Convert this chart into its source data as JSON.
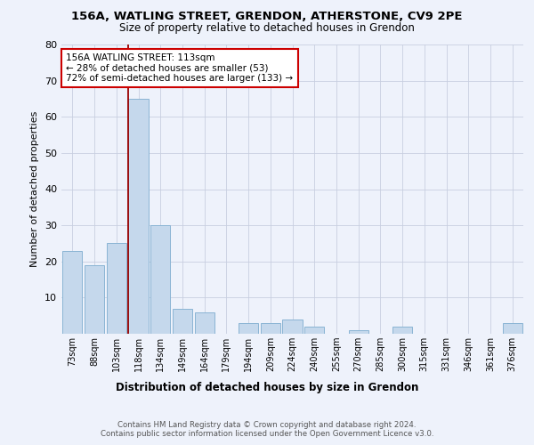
{
  "title1": "156A, WATLING STREET, GRENDON, ATHERSTONE, CV9 2PE",
  "title2": "Size of property relative to detached houses in Grendon",
  "xlabel": "Distribution of detached houses by size in Grendon",
  "ylabel": "Number of detached properties",
  "categories": [
    "73sqm",
    "88sqm",
    "103sqm",
    "118sqm",
    "134sqm",
    "149sqm",
    "164sqm",
    "179sqm",
    "194sqm",
    "209sqm",
    "224sqm",
    "240sqm",
    "255sqm",
    "270sqm",
    "285sqm",
    "300sqm",
    "315sqm",
    "331sqm",
    "346sqm",
    "361sqm",
    "376sqm"
  ],
  "values": [
    23,
    19,
    25,
    65,
    30,
    7,
    6,
    0,
    3,
    3,
    4,
    2,
    0,
    1,
    0,
    2,
    0,
    0,
    0,
    0,
    3
  ],
  "bar_color": "#c5d8ec",
  "bar_edge_color": "#8ab4d4",
  "marker_line_color": "#990000",
  "ylim": [
    0,
    80
  ],
  "yticks": [
    0,
    10,
    20,
    30,
    40,
    50,
    60,
    70,
    80
  ],
  "annotation_line1": "156A WATLING STREET: 113sqm",
  "annotation_line2": "← 28% of detached houses are smaller (53)",
  "annotation_line3": "72% of semi-detached houses are larger (133) →",
  "annotation_box_color": "#cc0000",
  "background_color": "#eef2fb",
  "grid_color": "#c8cfe0",
  "footer": "Contains HM Land Registry data © Crown copyright and database right 2024.\nContains public sector information licensed under the Open Government Licence v3.0."
}
